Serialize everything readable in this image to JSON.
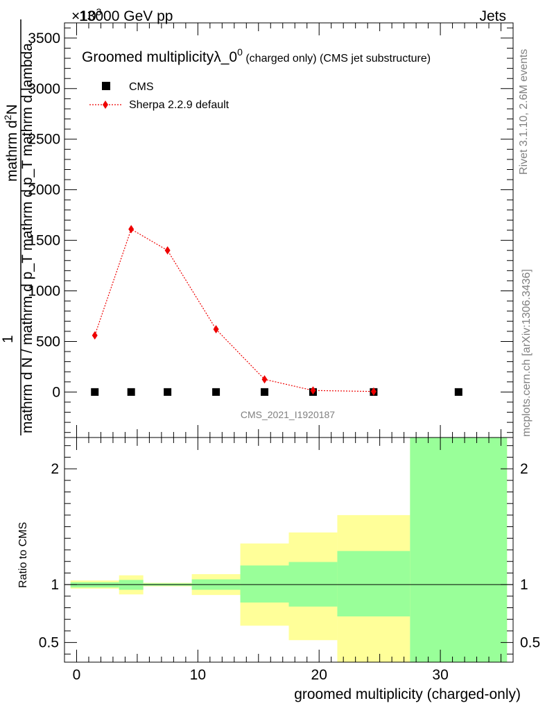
{
  "header": {
    "left": "13000 GeV pp",
    "right": "Jets",
    "exponent": "×10",
    "exponent_power": "3"
  },
  "side_labels": {
    "rivet": "Rivet 3.1.10,  2.6M events",
    "mcplots": "mcplots.cern.ch [arXiv:1306.3436]"
  },
  "main_title": {
    "text": "Groomed multiplicityλ_0",
    "sup": "0",
    "rest": " (charged only) (CMS jet substructure)"
  },
  "watermark": "CMS_2021_I1920187",
  "ylabel_main": {
    "prefix": "1",
    "numerator_top": "mathrm d",
    "numerator_sup": "2",
    "numerator_rest": "N",
    "fraction_bottom": "mathrm d N / mathrm d p_T mathrm d p_T mathrm d lambda"
  },
  "ylabel_ratio": "Ratio to CMS",
  "xlabel": "groomed multiplicity (charged-only)",
  "legend": [
    {
      "name": "CMS",
      "color": "#000000",
      "marker": "square"
    },
    {
      "name": "Sherpa 2.2.9 default",
      "color": "#ee0000",
      "marker": "diamond"
    }
  ],
  "chart_data": {
    "type": "line",
    "xlim": [
      -1,
      36
    ],
    "ylim": [
      -450,
      3650
    ],
    "ratio_ylim": [
      0.33,
      2.27
    ],
    "x_ticks": [
      0,
      10,
      20,
      30
    ],
    "y_ticks": [
      0,
      500,
      1000,
      1500,
      2000,
      2500,
      3000,
      3500
    ],
    "y_tick_labels": [
      "0",
      "500",
      "1000",
      "1500",
      "2000",
      "2500",
      "3000",
      "3500"
    ],
    "ratio_ticks": [
      0.5,
      1,
      2
    ],
    "ratio_tick_labels": [
      "0.5",
      "1",
      "2"
    ],
    "series": [
      {
        "name": "CMS",
        "x": [
          1.5,
          4.5,
          7.5,
          11.5,
          15.5,
          19.5,
          24.5,
          31.5
        ],
        "y": [
          0,
          0,
          0,
          0,
          0,
          0,
          0,
          0
        ]
      },
      {
        "name": "Sherpa 2.2.9 default",
        "x": [
          1.5,
          4.5,
          7.5,
          11.5,
          15.5,
          19.5,
          24.5
        ],
        "y": [
          560,
          1610,
          1400,
          620,
          125,
          15,
          5
        ]
      }
    ],
    "ratio_bands": [
      {
        "x0": -0.5,
        "x1": 3.5,
        "g_lo": 0.975,
        "g_hi": 1.02,
        "y_lo": 0.965,
        "y_hi": 1.035
      },
      {
        "x0": 3.5,
        "x1": 5.5,
        "g_lo": 0.955,
        "g_hi": 1.04,
        "y_lo": 0.915,
        "y_hi": 1.08
      },
      {
        "x0": 5.5,
        "x1": 9.5,
        "g_lo": 0.99,
        "g_hi": 1.01,
        "y_lo": 0.985,
        "y_hi": 1.015
      },
      {
        "x0": 9.5,
        "x1": 13.5,
        "g_lo": 0.955,
        "g_hi": 1.045,
        "y_lo": 0.91,
        "y_hi": 1.09
      },
      {
        "x0": 13.5,
        "x1": 17.5,
        "g_lo": 0.845,
        "g_hi": 1.165,
        "y_lo": 0.645,
        "y_hi": 1.355
      },
      {
        "x0": 17.5,
        "x1": 21.5,
        "g_lo": 0.81,
        "g_hi": 1.195,
        "y_lo": 0.52,
        "y_hi": 1.45
      },
      {
        "x0": 21.5,
        "x1": 27.5,
        "g_lo": 0.725,
        "g_hi": 1.29,
        "y_lo": 0.33,
        "y_hi": 1.6
      },
      {
        "x0": 27.5,
        "x1": 35.5,
        "g_lo": 0.33,
        "g_hi": 2.27,
        "y_lo": 0.33,
        "y_hi": 2.27
      }
    ]
  }
}
